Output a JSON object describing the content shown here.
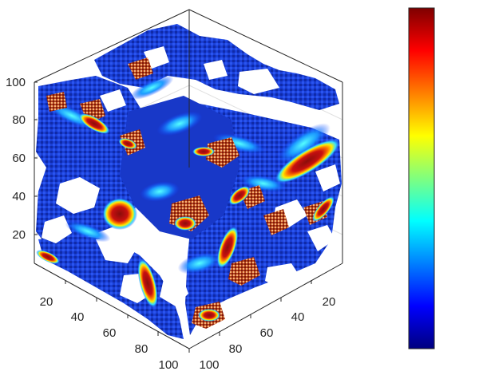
{
  "chart_data": {
    "type": "heatmap",
    "title": "",
    "xlabel": "",
    "ylabel": "",
    "zlabel": "",
    "projection": "3d-cube",
    "grid": true,
    "axes": {
      "x": {
        "range": [
          0,
          100
        ],
        "ticks": [
          "20",
          "40",
          "60",
          "80",
          "100"
        ]
      },
      "y": {
        "range": [
          0,
          100
        ],
        "ticks": [
          "20",
          "40",
          "60",
          "80",
          "100"
        ]
      },
      "z": {
        "range": [
          0,
          100
        ],
        "ticks": [
          "20",
          "40",
          "60",
          "80",
          "100"
        ]
      }
    },
    "colorbar": {
      "colormap": "jet",
      "location": "right",
      "stops": [
        "#00007f",
        "#0000ff",
        "#007fff",
        "#00ffff",
        "#7fff7f",
        "#ffff00",
        "#ff7f00",
        "#ff0000",
        "#7f0000"
      ],
      "tick_labels": []
    },
    "colors": {
      "background_low": "#0a1f9e",
      "hot": "#8a0d0a",
      "frame": "#262626",
      "grid": "#e0e0e0"
    }
  }
}
